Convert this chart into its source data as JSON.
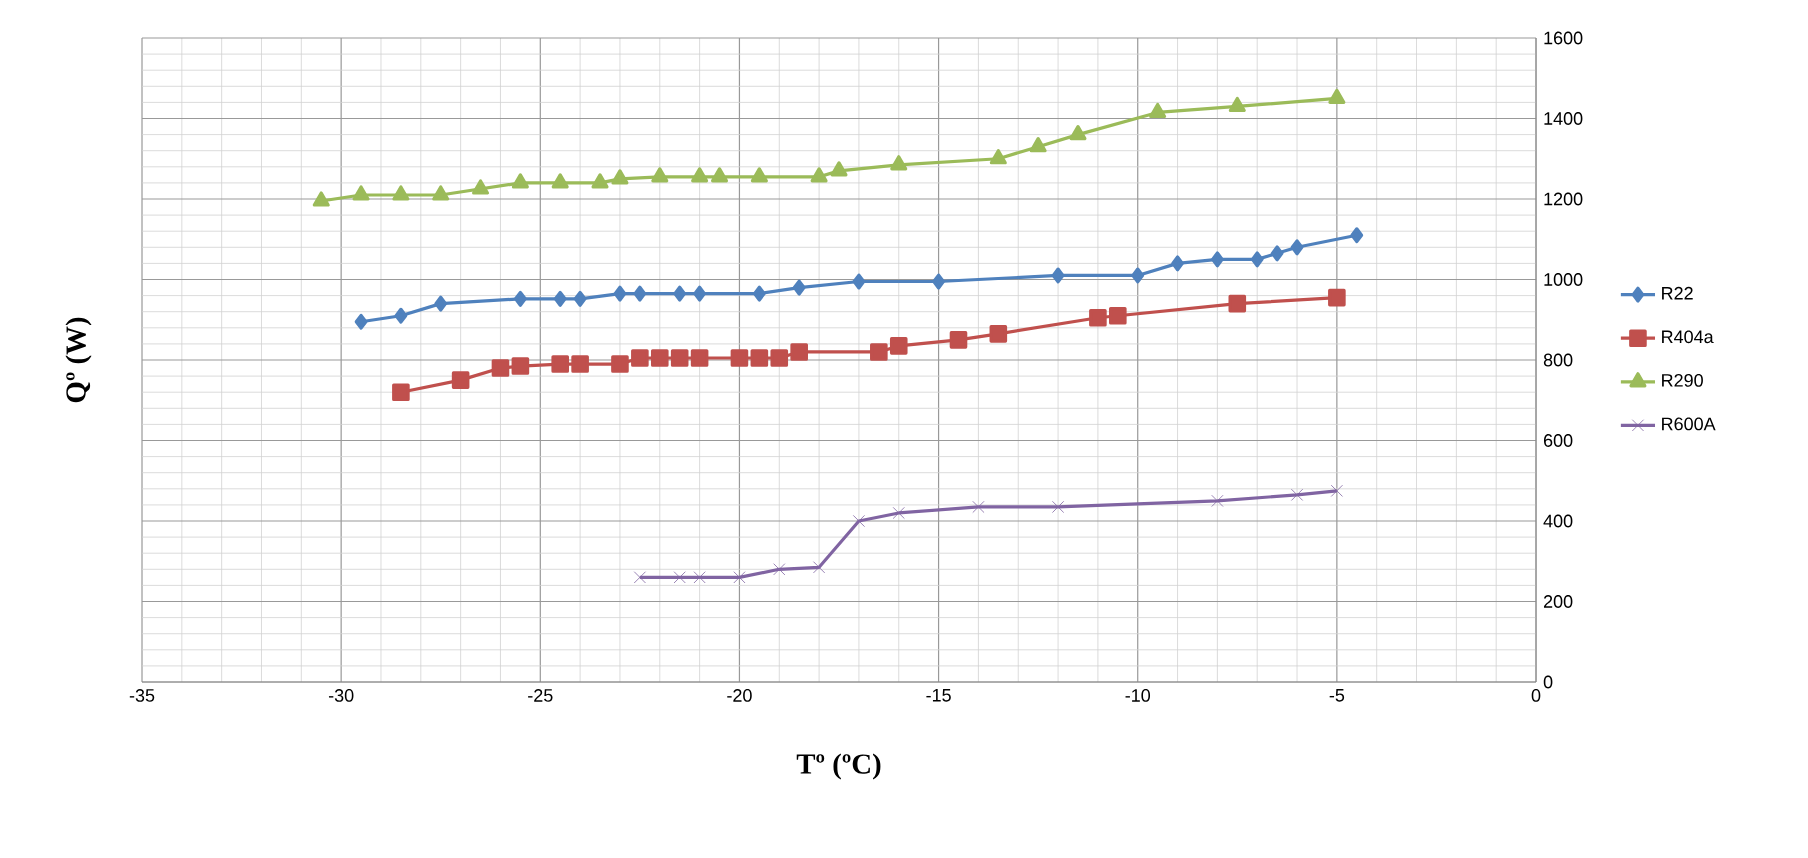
{
  "chart_data": {
    "type": "line",
    "xlabel": "Tº (ºC)",
    "ylabel": "Qº (W)",
    "xlim": [
      -35,
      0
    ],
    "ylim": [
      0,
      1600
    ],
    "xticks": [
      -35,
      -30,
      -25,
      -20,
      -15,
      -10,
      -5,
      0
    ],
    "yticks": [
      0,
      200,
      400,
      600,
      800,
      1000,
      1200,
      1400,
      1600
    ],
    "grid": true,
    "legend": "right",
    "line_style": "solid",
    "series": [
      {
        "name": "R22",
        "color": "#4f81bd",
        "marker": "diamond",
        "x": [
          -29.5,
          -28.5,
          -27.5,
          -25.5,
          -24.5,
          -24,
          -23,
          -22.5,
          -21.5,
          -21,
          -19.5,
          -18.5,
          -17,
          -15,
          -12,
          -10,
          -9,
          -8,
          -7,
          -6.5,
          -6,
          -4.5
        ],
        "values": [
          895,
          910,
          940,
          952,
          952,
          952,
          965,
          965,
          965,
          965,
          965,
          980,
          995,
          995,
          1010,
          1010,
          1040,
          1050,
          1050,
          1065,
          1080,
          1110
        ]
      },
      {
        "name": "R404a",
        "color": "#c0504d",
        "marker": "square",
        "x": [
          -28.5,
          -27,
          -26,
          -25.5,
          -24.5,
          -24,
          -23,
          -22.5,
          -22,
          -21.5,
          -21,
          -20,
          -19.5,
          -19,
          -18.5,
          -16.5,
          -16,
          -14.5,
          -13.5,
          -11,
          -10.5,
          -7.5,
          -5
        ],
        "values": [
          720,
          750,
          780,
          785,
          790,
          790,
          790,
          805,
          805,
          805,
          805,
          805,
          805,
          805,
          820,
          820,
          835,
          850,
          865,
          905,
          910,
          940,
          955
        ]
      },
      {
        "name": "R290",
        "color": "#9bbb59",
        "marker": "triangle",
        "x": [
          -30.5,
          -29.5,
          -28.5,
          -27.5,
          -26.5,
          -25.5,
          -24.5,
          -23.5,
          -23,
          -22,
          -21,
          -20.5,
          -19.5,
          -18,
          -17.5,
          -16,
          -13.5,
          -12.5,
          -11.5,
          -9.5,
          -7.5,
          -5
        ],
        "values": [
          1195,
          1210,
          1210,
          1210,
          1225,
          1240,
          1240,
          1240,
          1250,
          1255,
          1255,
          1255,
          1255,
          1255,
          1270,
          1285,
          1300,
          1330,
          1360,
          1415,
          1430,
          1450
        ]
      },
      {
        "name": "R600A",
        "color": "#8064a2",
        "marker": "cross",
        "x": [
          -22.5,
          -21.5,
          -21,
          -20,
          -19,
          -18,
          -17,
          -16,
          -14,
          -12,
          -8,
          -6,
          -5
        ],
        "values": [
          260,
          260,
          260,
          260,
          280,
          285,
          400,
          420,
          435,
          435,
          450,
          465,
          475
        ]
      }
    ]
  }
}
